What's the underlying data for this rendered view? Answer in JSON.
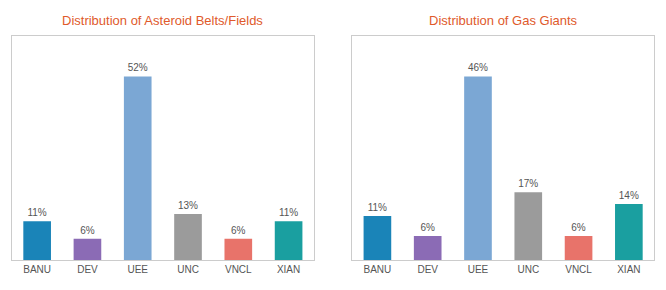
{
  "chart_data": [
    {
      "type": "bar",
      "title": "Distribution of Asteroid Belts/Fields",
      "categories": [
        "BANU",
        "DEV",
        "UEE",
        "UNC",
        "VNCL",
        "XIAN"
      ],
      "values": [
        11,
        6,
        52,
        13,
        6,
        11
      ],
      "value_labels": [
        "11%",
        "6%",
        "52%",
        "13%",
        "6%",
        "11%"
      ],
      "colors": [
        "#1a84b8",
        "#8b6bb5",
        "#7ba7d4",
        "#9b9b9b",
        "#e8736a",
        "#1a9fa0"
      ],
      "ylim": [
        0,
        63.44
      ],
      "grid": false,
      "data_labels": true,
      "tick_labels": "x"
    },
    {
      "type": "bar",
      "title": "Distribution of Gas Giants",
      "categories": [
        "BANU",
        "DEV",
        "UEE",
        "UNC",
        "VNCL",
        "XIAN"
      ],
      "values": [
        11,
        6,
        46,
        17,
        6,
        14
      ],
      "value_labels": [
        "11%",
        "6%",
        "46%",
        "17%",
        "6%",
        "14%"
      ],
      "colors": [
        "#1a84b8",
        "#8b6bb5",
        "#7ba7d4",
        "#9b9b9b",
        "#e8736a",
        "#1a9fa0"
      ],
      "ylim": [
        0,
        56.12
      ],
      "grid": false,
      "data_labels": true,
      "tick_labels": "x"
    }
  ]
}
